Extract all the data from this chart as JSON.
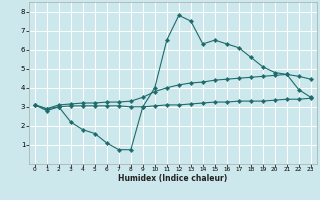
{
  "xlabel": "Humidex (Indice chaleur)",
  "background_color": "#cce8ec",
  "grid_color": "#ffffff",
  "line_color": "#1e6b6b",
  "x_values": [
    0,
    1,
    2,
    3,
    4,
    5,
    6,
    7,
    8,
    9,
    10,
    11,
    12,
    13,
    14,
    15,
    16,
    17,
    18,
    19,
    20,
    21,
    22,
    23
  ],
  "y_top": [
    3.1,
    2.8,
    3.0,
    2.2,
    1.8,
    1.6,
    1.1,
    0.75,
    0.75,
    3.0,
    4.0,
    6.5,
    7.8,
    7.5,
    6.3,
    6.5,
    6.3,
    6.1,
    5.6,
    5.1,
    4.8,
    4.7,
    3.9,
    3.5
  ],
  "y_mid": [
    3.1,
    2.9,
    3.1,
    3.15,
    3.2,
    3.2,
    3.25,
    3.25,
    3.3,
    3.5,
    3.8,
    4.0,
    4.15,
    4.25,
    4.3,
    4.4,
    4.45,
    4.5,
    4.55,
    4.6,
    4.65,
    4.7,
    4.6,
    4.45
  ],
  "y_bot": [
    3.1,
    2.9,
    3.0,
    3.05,
    3.05,
    3.05,
    3.05,
    3.05,
    3.0,
    3.0,
    3.05,
    3.1,
    3.1,
    3.15,
    3.2,
    3.25,
    3.25,
    3.3,
    3.3,
    3.3,
    3.35,
    3.4,
    3.4,
    3.45
  ],
  "xlim": [
    -0.5,
    23.5
  ],
  "ylim": [
    0,
    8.5
  ],
  "yticks": [
    1,
    2,
    3,
    4,
    5,
    6,
    7,
    8
  ],
  "xticks": [
    0,
    1,
    2,
    3,
    4,
    5,
    6,
    7,
    8,
    9,
    10,
    11,
    12,
    13,
    14,
    15,
    16,
    17,
    18,
    19,
    20,
    21,
    22,
    23
  ]
}
